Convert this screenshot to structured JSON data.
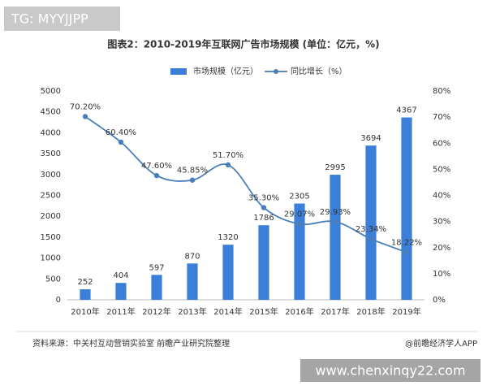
{
  "chart_data": {
    "type": "bar_line",
    "title": "图表2：2010-2019年互联网广告市场规模 (单位：亿元，%)",
    "categories": [
      "2010年",
      "2011年",
      "2012年",
      "2013年",
      "2014年",
      "2015年",
      "2016年",
      "2017年",
      "2018年",
      "2019年"
    ],
    "series": [
      {
        "name": "市场规模（亿元）",
        "color": "#3b7fd8",
        "kind": "bar",
        "values": [
          252,
          404,
          597,
          870,
          1320,
          1786,
          2305,
          2995,
          3694,
          4367
        ]
      },
      {
        "name": "同比增长（%）",
        "color": "#4a7ebb",
        "kind": "line",
        "axis": "y2",
        "values": [
          70.2,
          60.4,
          47.6,
          45.85,
          51.7,
          35.3,
          29.07,
          29.93,
          23.34,
          18.22
        ],
        "value_labels": [
          "70.20%",
          "60.40%",
          "47.60%",
          "45.85%",
          "51.70%",
          "35.30%",
          "29.07%",
          "29.93%",
          "23.34%",
          "18.22%"
        ]
      }
    ],
    "ylim": [
      0,
      5000
    ],
    "yticks": [
      0,
      500,
      1000,
      1500,
      2000,
      2500,
      3000,
      3500,
      4000,
      4500,
      5000
    ],
    "y2lim": [
      0,
      80
    ],
    "y2ticks": [
      {
        "value": 0,
        "label": "0%"
      },
      {
        "value": 10,
        "label": "10%"
      },
      {
        "value": 20,
        "label": "20%"
      },
      {
        "value": 30,
        "label": "30%"
      },
      {
        "value": 40,
        "label": "40%"
      },
      {
        "value": 50,
        "label": "50%"
      },
      {
        "value": 60,
        "label": "60%"
      },
      {
        "value": 70,
        "label": "70%"
      },
      {
        "value": 80,
        "label": "80%"
      }
    ],
    "grid": false,
    "source": "资料来源：中关村互动营销实验室  前瞻产业研究院整理",
    "credit": "@前瞻经济学人APP",
    "overlay_top": "TG: MYYJJPP",
    "overlay_bottom": "www.chenxinqy22.com"
  }
}
